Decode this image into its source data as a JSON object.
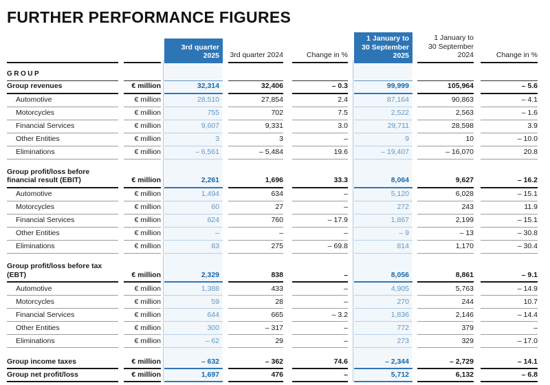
{
  "page": {
    "title": "FURTHER PERFORMANCE FIGURES"
  },
  "colors": {
    "header_blue": "#2e75b6",
    "highlight_column_bg": "#f2f7fb",
    "highlight_value_bold": "#1a67a8",
    "highlight_value": "#5e96c6"
  },
  "table": {
    "unit_label": "€ million",
    "group_label": "GROUP",
    "headers": [
      {
        "label": "3rd quarter 2025",
        "highlight": true
      },
      {
        "label": "3rd quarter 2024",
        "highlight": false
      },
      {
        "label": "Change in %",
        "highlight": false
      },
      {
        "label": "1 January to\n30 September 2025",
        "highlight": true
      },
      {
        "label": "1 January to\n30 September 2024",
        "highlight": false
      },
      {
        "label": "Change in %",
        "highlight": false
      }
    ],
    "sections": [
      {
        "rows": [
          {
            "label": "Group revenues",
            "bold": true,
            "values": [
              "32,314",
              "32,406",
              "– 0.3",
              "99,999",
              "105,964",
              "– 5.6"
            ]
          },
          {
            "label": "Automotive",
            "bold": false,
            "values": [
              "28,510",
              "27,854",
              "2.4",
              "87,164",
              "90,863",
              "– 4.1"
            ]
          },
          {
            "label": "Motorcycles",
            "bold": false,
            "values": [
              "755",
              "702",
              "7.5",
              "2,522",
              "2,563",
              "– 1.6"
            ]
          },
          {
            "label": "Financial Services",
            "bold": false,
            "values": [
              "9,607",
              "9,331",
              "3.0",
              "29,711",
              "28,598",
              "3.9"
            ]
          },
          {
            "label": "Other Entities",
            "bold": false,
            "values": [
              "3",
              "3",
              "–",
              "9",
              "10",
              "– 10.0"
            ]
          },
          {
            "label": "Eliminations",
            "bold": false,
            "values": [
              "– 6,561",
              "– 5,484",
              "19.6",
              "– 19,407",
              "– 16,070",
              "20.8"
            ]
          }
        ]
      },
      {
        "rows": [
          {
            "label": "Group profit/loss before financial result (EBIT)",
            "bold": true,
            "values": [
              "2,261",
              "1,696",
              "33.3",
              "8,064",
              "9,627",
              "– 16.2"
            ]
          },
          {
            "label": "Automotive",
            "bold": false,
            "values": [
              "1,494",
              "634",
              "–",
              "5,120",
              "6,028",
              "– 15.1"
            ]
          },
          {
            "label": "Motorcycles",
            "bold": false,
            "values": [
              "60",
              "27",
              "–",
              "272",
              "243",
              "11.9"
            ]
          },
          {
            "label": "Financial Services",
            "bold": false,
            "values": [
              "624",
              "760",
              "– 17.9",
              "1,867",
              "2,199",
              "– 15.1"
            ]
          },
          {
            "label": "Other Entities",
            "bold": false,
            "values": [
              "–",
              "–",
              "–",
              "– 9",
              "– 13",
              "– 30.8"
            ]
          },
          {
            "label": "Eliminations",
            "bold": false,
            "values": [
              "83",
              "275",
              "– 69.8",
              "814",
              "1,170",
              "– 30.4"
            ]
          }
        ]
      },
      {
        "rows": [
          {
            "label": "Group profit/loss before tax (EBT)",
            "bold": true,
            "values": [
              "2,329",
              "838",
              "–",
              "8,056",
              "8,861",
              "– 9.1"
            ]
          },
          {
            "label": "Automotive",
            "bold": false,
            "values": [
              "1,388",
              "433",
              "–",
              "4,905",
              "5,763",
              "– 14.9"
            ]
          },
          {
            "label": "Motorcycles",
            "bold": false,
            "values": [
              "59",
              "28",
              "–",
              "270",
              "244",
              "10.7"
            ]
          },
          {
            "label": "Financial Services",
            "bold": false,
            "values": [
              "644",
              "665",
              "– 3.2",
              "1,836",
              "2,146",
              "– 14.4"
            ]
          },
          {
            "label": "Other Entities",
            "bold": false,
            "values": [
              "300",
              "– 317",
              "–",
              "772",
              "379",
              "–"
            ]
          },
          {
            "label": "Eliminations",
            "bold": false,
            "values": [
              "– 62",
              "29",
              "–",
              "273",
              "329",
              "– 17.0"
            ]
          }
        ]
      },
      {
        "rows": [
          {
            "label": "Group income taxes",
            "bold": true,
            "values": [
              "– 632",
              "– 362",
              "74.6",
              "– 2,344",
              "– 2,729",
              "– 14.1"
            ]
          },
          {
            "label": "Group net profit/loss",
            "bold": true,
            "values": [
              "1,697",
              "476",
              "–",
              "5,712",
              "6,132",
              "– 6.8"
            ]
          }
        ]
      }
    ]
  }
}
